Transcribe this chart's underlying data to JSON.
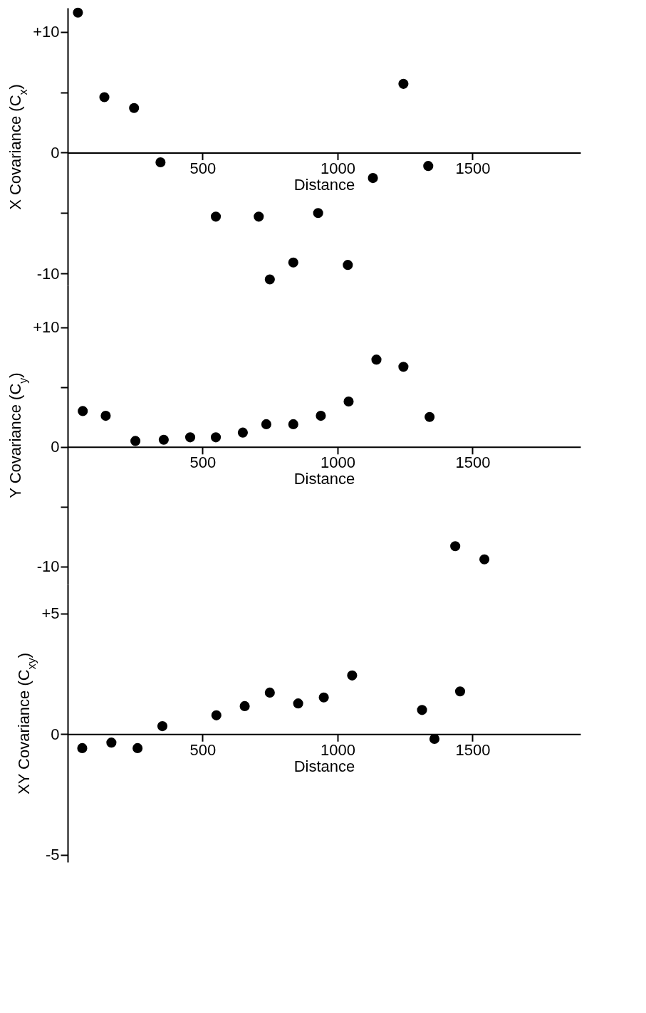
{
  "chart_data": [
    {
      "type": "scatter",
      "ylabel": "X  Covariance (C$_{x}$)",
      "xlabel": "Distance",
      "marker": "circle",
      "grid": false,
      "xlim": [
        0,
        1900
      ],
      "xticks": [
        500,
        1000,
        1500
      ],
      "ylim": [
        -11,
        12
      ],
      "yticks": [
        {
          "value": 10,
          "label": "+10"
        },
        {
          "value": 5,
          "label": null
        },
        0,
        {
          "value": -5,
          "label": null
        },
        -10
      ],
      "x": [
        38,
        136,
        246,
        344,
        549,
        708,
        749,
        836,
        928,
        1038,
        1131,
        1244,
        1336
      ],
      "series": [
        {
          "color": "#000000",
          "values": [
            11.6,
            4.6,
            3.7,
            -0.8,
            -5.3,
            -5.3,
            -10.5,
            -9.1,
            -5.0,
            -9.3,
            -2.1,
            5.7,
            -1.1
          ]
        }
      ]
    },
    {
      "type": "scatter",
      "ylabel": "Y  Covariance (C$_{y}$)",
      "xlabel": "Distance",
      "marker": "circle",
      "grid": false,
      "xlim": [
        0,
        1900
      ],
      "xticks": [
        500,
        1000,
        1500
      ],
      "ylim": [
        -11.5,
        13.5
      ],
      "yticks": [
        {
          "value": 10,
          "label": "+10"
        },
        {
          "value": 5,
          "label": null
        },
        0,
        {
          "value": -5,
          "label": null
        },
        -10
      ],
      "x": [
        56,
        141,
        251,
        356,
        454,
        549,
        649,
        736,
        836,
        938,
        1041,
        1144,
        1244,
        1341,
        1436,
        1544
      ],
      "series": [
        {
          "color": "#000000",
          "values": [
            3.0,
            2.6,
            0.5,
            0.6,
            0.8,
            0.8,
            1.2,
            1.9,
            1.9,
            2.6,
            3.8,
            7.3,
            6.7,
            2.5,
            -8.3,
            -9.4
          ]
        }
      ]
    },
    {
      "type": "scatter",
      "ylabel": "XY  Covariance (C$_{xy}$)",
      "xlabel": "Distance",
      "marker": "circle",
      "grid": false,
      "xlim": [
        0,
        1900
      ],
      "xticks": [
        500,
        1000,
        1500
      ],
      "ylim": [
        -5.3,
        6.2
      ],
      "yticks": [
        {
          "value": 5,
          "label": "+5"
        },
        0,
        -5
      ],
      "x": [
        54,
        162,
        259,
        351,
        551,
        656,
        749,
        854,
        949,
        1054,
        1313,
        1359,
        1454
      ],
      "series": [
        {
          "color": "#000000",
          "values": [
            -0.58,
            -0.35,
            -0.58,
            0.33,
            0.78,
            1.16,
            1.72,
            1.27,
            1.52,
            2.43,
            1.0,
            -0.2,
            1.77
          ]
        }
      ]
    }
  ]
}
